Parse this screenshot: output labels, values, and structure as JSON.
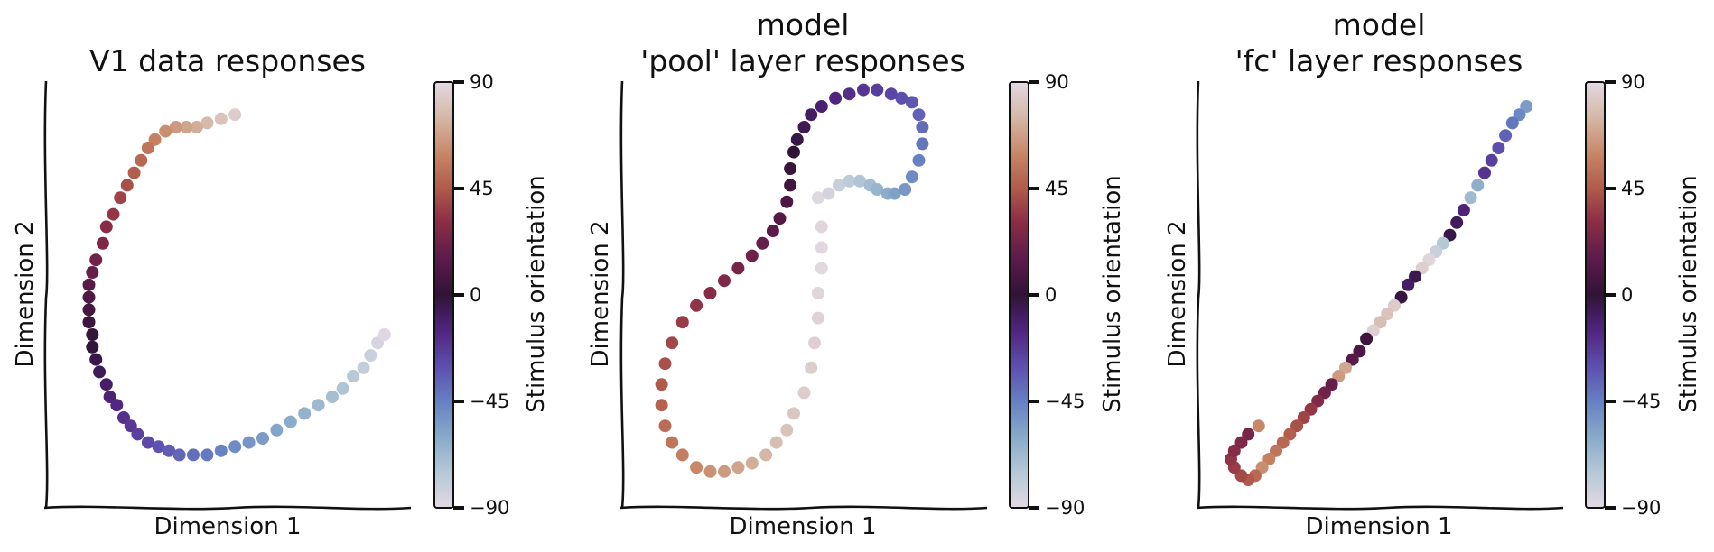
{
  "chart_data": [
    {
      "type": "scatter",
      "title_lines": [
        "V1 data responses"
      ],
      "xlabel": "Dimension 1",
      "ylabel": "Dimension 2",
      "xlim": [
        0,
        100
      ],
      "ylim": [
        0,
        100
      ],
      "xticks": false,
      "yticks": false,
      "colorbar": {
        "label": "Stimulus orientation",
        "ticks": [
          90,
          45,
          0,
          -45,
          -90
        ],
        "tick_labels": [
          "90",
          "45",
          "0",
          "−45",
          "−90"
        ],
        "range": [
          -90,
          90
        ],
        "colormap": "twilight"
      },
      "series": [
        {
          "color_by": "orientation",
          "points": [
            [
              52,
              93,
              84
            ],
            [
              48,
              92,
              80
            ],
            [
              44,
              91,
              76
            ],
            [
              41,
              90,
              72
            ],
            [
              38,
              90,
              69
            ],
            [
              35,
              90,
              66
            ],
            [
              32,
              89,
              62
            ],
            [
              29,
              87,
              58
            ],
            [
              27,
              85,
              54
            ],
            [
              25,
              82,
              50
            ],
            [
              23,
              79,
              46
            ],
            [
              21,
              76,
              42
            ],
            [
              19,
              73,
              38
            ],
            [
              17,
              69,
              34
            ],
            [
              15,
              66,
              30
            ],
            [
              14,
              62,
              26
            ],
            [
              12,
              58,
              22
            ],
            [
              11,
              55,
              18
            ],
            [
              10,
              52,
              14
            ],
            [
              10,
              49,
              11
            ],
            [
              10,
              46,
              8
            ],
            [
              10,
              43,
              5
            ],
            [
              11,
              40,
              2
            ],
            [
              11,
              37,
              -1
            ],
            [
              12,
              34,
              -4
            ],
            [
              13,
              31,
              -7
            ],
            [
              15,
              28,
              -10
            ],
            [
              16,
              25,
              -13
            ],
            [
              18,
              23,
              -16
            ],
            [
              20,
              20,
              -19
            ],
            [
              22,
              18,
              -22
            ],
            [
              24,
              16,
              -25
            ],
            [
              27,
              14,
              -28
            ],
            [
              30,
              13,
              -31
            ],
            [
              33,
              12,
              -34
            ],
            [
              36,
              11,
              -37
            ],
            [
              40,
              11,
              -40
            ],
            [
              44,
              11,
              -43
            ],
            [
              48,
              12,
              -46
            ],
            [
              52,
              13,
              -49
            ],
            [
              56,
              14,
              -52
            ],
            [
              60,
              15,
              -55
            ],
            [
              64,
              17,
              -58
            ],
            [
              68,
              19,
              -61
            ],
            [
              72,
              21,
              -64
            ],
            [
              76,
              23,
              -67
            ],
            [
              80,
              25,
              -70
            ],
            [
              83,
              27,
              -73
            ],
            [
              86,
              30,
              -76
            ],
            [
              89,
              32,
              -79
            ],
            [
              91,
              35,
              -82
            ],
            [
              93,
              38,
              -86
            ],
            [
              95,
              40,
              -89
            ]
          ]
        }
      ]
    },
    {
      "type": "scatter",
      "title_lines": [
        "model",
        "'pool' layer responses"
      ],
      "xlabel": "Dimension 1",
      "ylabel": "Dimension 2",
      "xlim": [
        0,
        100
      ],
      "ylim": [
        0,
        100
      ],
      "xticks": false,
      "yticks": false,
      "colorbar": {
        "label": "Stimulus orientation",
        "ticks": [
          90,
          45,
          0,
          -45,
          -90
        ],
        "tick_labels": [
          "90",
          "45",
          "0",
          "−45",
          "−90"
        ],
        "range": [
          -90,
          90
        ],
        "colormap": "twilight"
      },
      "series": [
        {
          "color_by": "orientation",
          "points": [
            [
              54,
              73,
              -89
            ],
            [
              57,
              74,
              -85
            ],
            [
              60,
              76,
              -81
            ],
            [
              63,
              77,
              -77
            ],
            [
              66,
              77,
              -73
            ],
            [
              69,
              76,
              -69
            ],
            [
              71,
              75,
              -65
            ],
            [
              74,
              74,
              -61
            ],
            [
              76,
              74,
              -57
            ],
            [
              79,
              75,
              -53
            ],
            [
              81,
              78,
              -49
            ],
            [
              83,
              82,
              -45
            ],
            [
              84,
              86,
              -42
            ],
            [
              84,
              90,
              -39
            ],
            [
              83,
              93,
              -36
            ],
            [
              81,
              96,
              -33
            ],
            [
              78,
              97,
              -30
            ],
            [
              75,
              98,
              -27
            ],
            [
              71,
              99,
              -24
            ],
            [
              67,
              99,
              -21
            ],
            [
              63,
              98,
              -18
            ],
            [
              59,
              97,
              -15
            ],
            [
              55,
              95,
              -12
            ],
            [
              52,
              93,
              -9
            ],
            [
              50,
              90,
              -6
            ],
            [
              48,
              87,
              -3
            ],
            [
              47,
              84,
              0
            ],
            [
              46,
              80,
              3
            ],
            [
              46,
              76,
              6
            ],
            [
              45,
              72,
              9
            ],
            [
              43,
              68,
              12
            ],
            [
              41,
              65,
              15
            ],
            [
              38,
              62,
              18
            ],
            [
              35,
              59,
              21
            ],
            [
              31,
              56,
              24
            ],
            [
              27,
              53,
              27
            ],
            [
              23,
              50,
              30
            ],
            [
              19,
              47,
              33
            ],
            [
              15,
              43,
              36
            ],
            [
              12,
              38,
              39
            ],
            [
              10,
              33,
              42
            ],
            [
              9,
              28,
              45
            ],
            [
              9,
              23,
              48
            ],
            [
              10,
              18,
              51
            ],
            [
              12,
              14,
              54
            ],
            [
              15,
              11,
              57
            ],
            [
              19,
              8,
              60
            ],
            [
              23,
              7,
              63
            ],
            [
              27,
              7,
              66
            ],
            [
              31,
              8,
              69
            ],
            [
              35,
              9,
              72
            ],
            [
              39,
              11,
              75
            ],
            [
              42,
              14,
              78
            ],
            [
              45,
              17,
              80
            ],
            [
              47,
              21,
              82
            ],
            [
              50,
              26,
              84
            ],
            [
              52,
              32,
              85
            ],
            [
              53,
              38,
              86
            ],
            [
              54,
              44,
              87
            ],
            [
              54,
              50,
              88
            ],
            [
              55,
              56,
              89
            ],
            [
              55,
              61,
              89
            ],
            [
              55,
              66,
              88
            ]
          ]
        }
      ]
    },
    {
      "type": "scatter",
      "title_lines": [
        "model",
        "'fc' layer responses"
      ],
      "xlabel": "Dimension 1",
      "ylabel": "Dimension 2",
      "xlim": [
        0,
        100
      ],
      "ylim": [
        0,
        100
      ],
      "xticks": false,
      "yticks": false,
      "colorbar": {
        "label": "Stimulus orientation",
        "ticks": [
          90,
          45,
          0,
          -45,
          -90
        ],
        "tick_labels": [
          "90",
          "45",
          "0",
          "−45",
          "−90"
        ],
        "range": [
          -90,
          90
        ],
        "colormap": "twilight"
      },
      "series": [
        {
          "color_by": "orientation",
          "points": [
            [
              92,
              95,
              -55
            ],
            [
              90,
              93,
              -48
            ],
            [
              88,
              91,
              -42
            ],
            [
              86,
              88,
              -36
            ],
            [
              84,
              85,
              -30
            ],
            [
              82,
              82,
              -25
            ],
            [
              80,
              79,
              -20
            ],
            [
              78,
              76,
              -62
            ],
            [
              76,
              73,
              -68
            ],
            [
              74,
              70,
              -14
            ],
            [
              72,
              67,
              -8
            ],
            [
              70,
              64,
              -3
            ],
            [
              68,
              62,
              -75
            ],
            [
              66,
              60,
              -82
            ],
            [
              64,
              58,
              88
            ],
            [
              62,
              56,
              85
            ],
            [
              60,
              54,
              -5
            ],
            [
              58,
              52,
              -10
            ],
            [
              56,
              49,
              -2
            ],
            [
              54,
              47,
              84
            ],
            [
              52,
              45,
              80
            ],
            [
              50,
              43,
              78
            ],
            [
              48,
              41,
              86
            ],
            [
              46,
              39,
              5
            ],
            [
              44,
              36,
              10
            ],
            [
              42,
              34,
              14
            ],
            [
              40,
              32,
              70
            ],
            [
              38,
              30,
              66
            ],
            [
              36,
              28,
              18
            ],
            [
              34,
              26,
              22
            ],
            [
              32,
              24,
              28
            ],
            [
              30,
              22,
              34
            ],
            [
              28,
              20,
              38
            ],
            [
              26,
              18,
              42
            ],
            [
              24,
              16,
              46
            ],
            [
              22,
              14,
              50
            ],
            [
              20,
              12,
              54
            ],
            [
              18,
              10,
              58
            ],
            [
              16,
              8,
              62
            ],
            [
              14,
              6,
              50
            ],
            [
              12,
              5,
              45
            ],
            [
              10,
              6,
              40
            ],
            [
              8,
              8,
              36
            ],
            [
              7,
              10,
              33
            ],
            [
              8,
              12,
              30
            ],
            [
              10,
              14,
              27
            ],
            [
              12,
              16,
              24
            ],
            [
              15,
              18,
              60
            ]
          ]
        }
      ]
    }
  ]
}
